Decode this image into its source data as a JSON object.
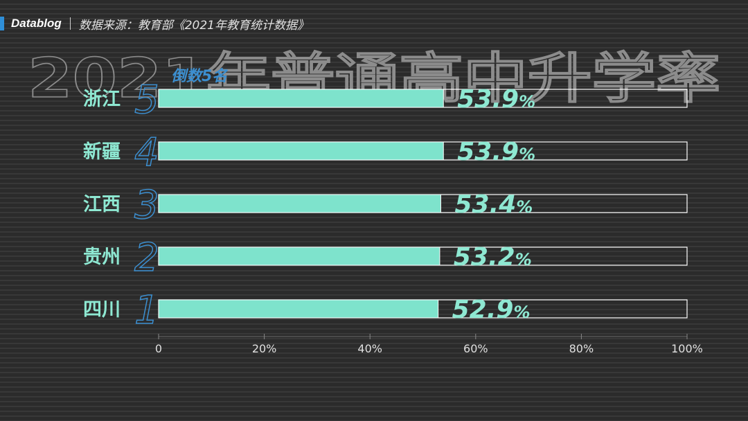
{
  "header": {
    "brand": "Datablog",
    "source": "数据来源：教育部《2021年教育统计数据》"
  },
  "chart_data": {
    "type": "bar",
    "orientation": "horizontal",
    "title": "2021年普通高中升学率",
    "subtitle": "倒数5名",
    "categories": [
      "浙江",
      "新疆",
      "江西",
      "贵州",
      "四川"
    ],
    "ranks": [
      "5",
      "4",
      "3",
      "2",
      "1"
    ],
    "values": [
      53.9,
      53.9,
      53.4,
      53.2,
      52.9
    ],
    "value_labels": [
      "53.9",
      "53.9",
      "53.4",
      "53.2",
      "52.9"
    ],
    "value_suffix": "%",
    "xlim": [
      0,
      100
    ],
    "xticks": [
      "0",
      "20%",
      "40%",
      "60%",
      "80%",
      "100%"
    ],
    "grid": false,
    "colors": {
      "bar_fill": "#7ee3cc",
      "bar_outline": "#ffffff",
      "label": "#8ee8d2",
      "rank": "#3c8fd0",
      "accent": "#2f8fd8"
    }
  }
}
